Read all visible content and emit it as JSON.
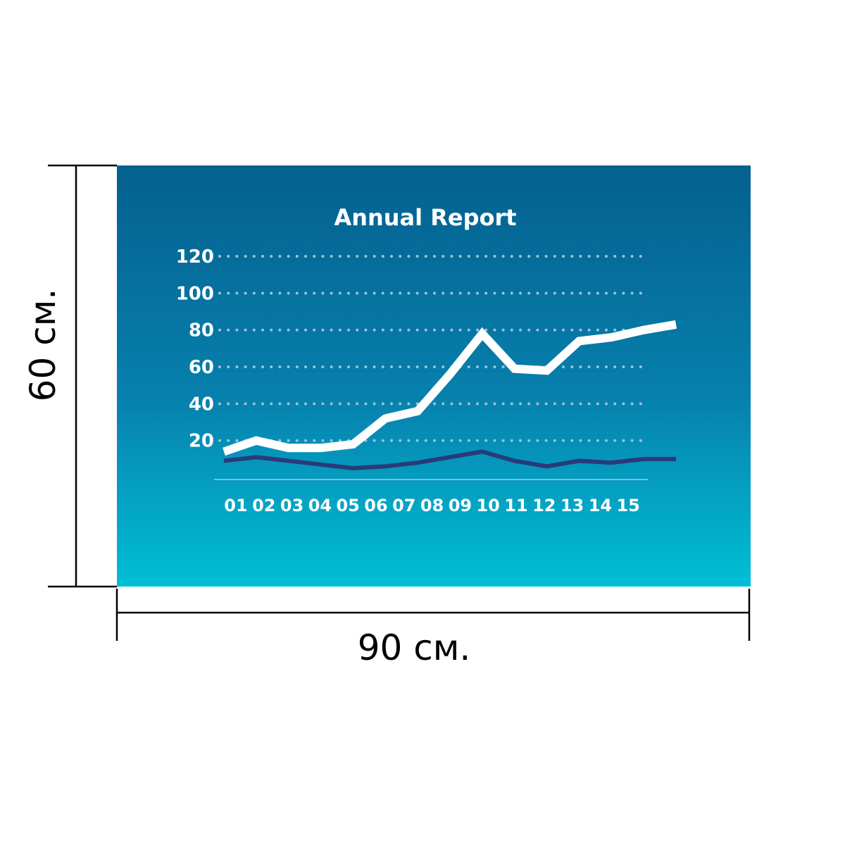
{
  "dimensions": {
    "height_label": "60 см.",
    "width_label": "90 см."
  },
  "colors": {
    "panel_top": "#04608f",
    "panel_bottom": "#00bfd6",
    "series_primary": "#ffffff",
    "series_secondary": "#2a3a78",
    "grid": "#9fc1d9"
  },
  "chart_data": {
    "type": "line",
    "title": "Annual Report",
    "xlabel": "",
    "ylabel": "",
    "grid": true,
    "x": [
      "01",
      "02",
      "03",
      "04",
      "05",
      "06",
      "07",
      "08",
      "09",
      "10",
      "11",
      "12",
      "13",
      "14",
      "15"
    ],
    "y_ticks": [
      20,
      40,
      60,
      80,
      100,
      120
    ],
    "ylim": [
      0,
      120
    ],
    "series": [
      {
        "color": "#ffffff",
        "values": [
          14,
          20,
          16,
          16,
          18,
          32,
          36,
          56,
          78,
          59,
          58,
          74,
          76,
          80,
          83
        ]
      },
      {
        "color": "#2a3a78",
        "values": [
          9,
          11,
          9,
          7,
          5,
          6,
          8,
          11,
          14,
          9,
          6,
          9,
          8,
          10,
          10
        ]
      }
    ]
  }
}
